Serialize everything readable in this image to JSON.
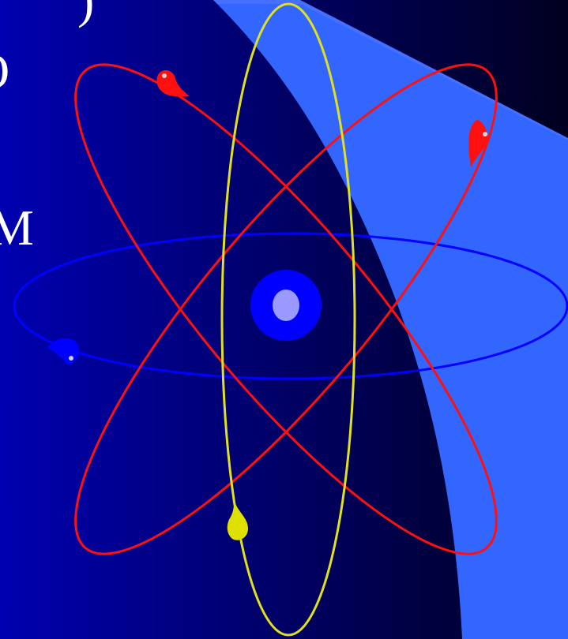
{
  "text_fragments": [
    ")",
    "O",
    "M"
  ]
}
